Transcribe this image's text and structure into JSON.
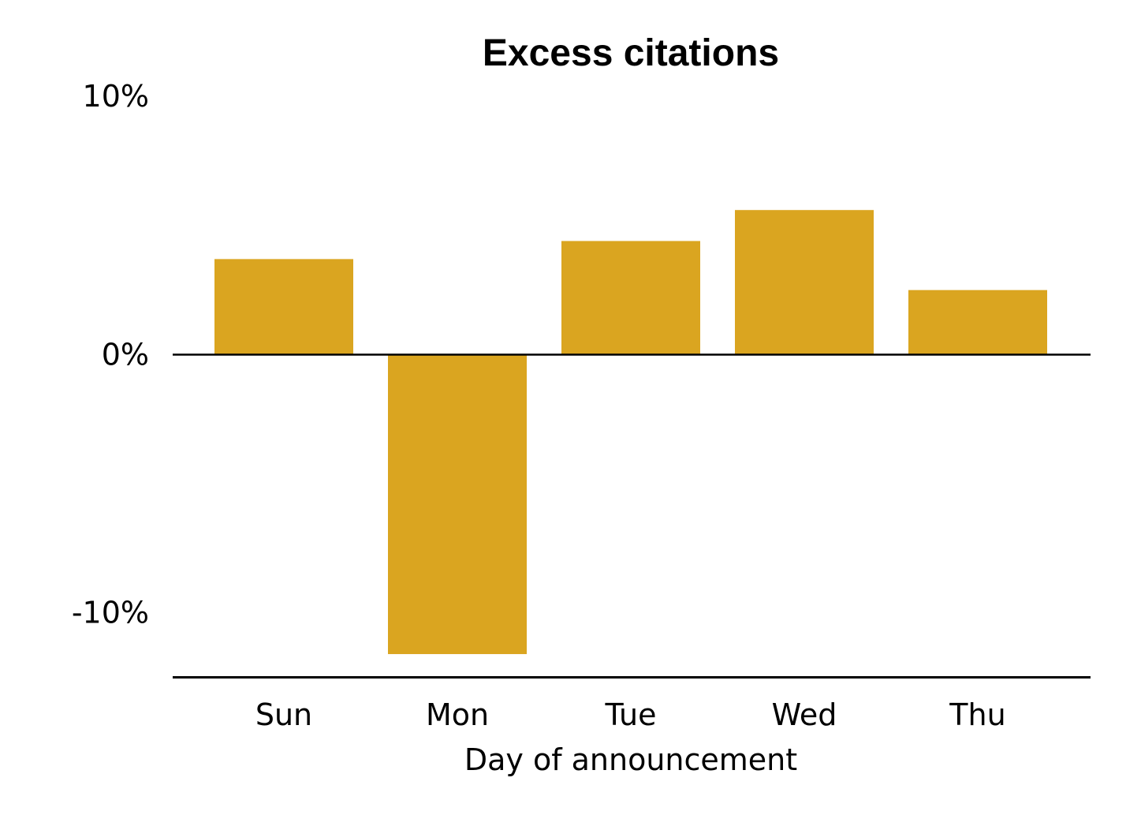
{
  "chart_data": {
    "type": "bar",
    "title": "Excess citations",
    "xlabel": "Day of announcement",
    "ylabel": "",
    "categories": [
      "Sun",
      "Mon",
      "Tue",
      "Wed",
      "Thu"
    ],
    "values": [
      3.7,
      -11.6,
      4.4,
      5.6,
      2.5
    ],
    "unit": "%",
    "ylim": [
      -12.5,
      11
    ],
    "yticks": [
      10,
      0,
      -10
    ],
    "ytick_labels": [
      "10%",
      "0%",
      "-10%"
    ],
    "grid": false,
    "legend": "none",
    "bar_color": "#DAA520",
    "axis_color": "#000000"
  }
}
